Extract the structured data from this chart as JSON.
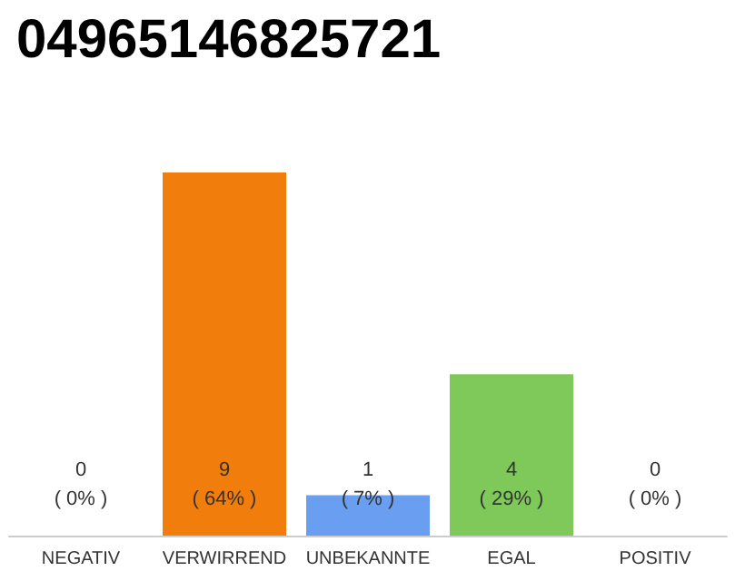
{
  "chart_data": {
    "type": "bar",
    "title": "04965146825721",
    "categories": [
      "NEGATIV",
      "VERWIRREND",
      "UNBEKANNTE",
      "EGAL",
      "POSITIV"
    ],
    "values": [
      0,
      9,
      1,
      4,
      0
    ],
    "colors": [
      "#7ec95a",
      "#f07d0c",
      "#6a9ef0",
      "#7ec95a",
      "#f07d0c"
    ],
    "value_labels": [
      "0\n( 0% )",
      "9\n( 64% )",
      "1\n( 7% )",
      "4\n( 29% )",
      "0\n( 0% )"
    ]
  }
}
